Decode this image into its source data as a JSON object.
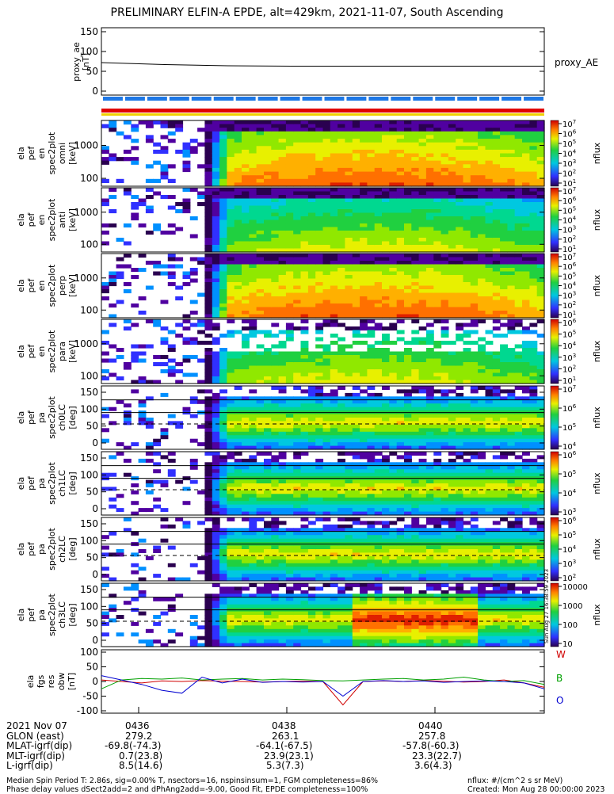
{
  "title": "PRELIMINARY ELFIN-A EPDE, alt=429km, 2021-11-07, South Ascending",
  "colors": {
    "colorbar_top": "#c00000",
    "colorbar_bottom": "#2a0050",
    "trace_w": "#d00000",
    "trace_b": "#00a000",
    "trace_o": "#0000d0",
    "bar_blue": "#1e78e6",
    "bar_red": "#e00000",
    "bar_yellow": "#f0d000"
  },
  "chart_data": [
    {
      "type": "line",
      "panel": "proxy_ae",
      "ylabel": [
        "proxy_ae",
        "[nT]"
      ],
      "legend": "proxy_AE",
      "ylim": [
        0,
        150
      ],
      "yticks": [
        "150",
        "100",
        "50",
        "0"
      ],
      "x": [
        "04:35:00",
        "04:36:00",
        "04:37:00",
        "04:38:00",
        "04:39:00",
        "04:40:00",
        "04:41:00",
        "04:41:45"
      ],
      "values": [
        72,
        67,
        64,
        63,
        63,
        63,
        63,
        63
      ]
    },
    {
      "type": "heatmap",
      "panel": "en omni",
      "ylabel": [
        "ela",
        "pef",
        "en",
        "spec2plot",
        "omni",
        "[keV]"
      ],
      "yticks": [
        "1000",
        "100"
      ],
      "colorbar": {
        "label": "nflux",
        "ticks": [
          "10^7",
          "10^6",
          "10^5",
          "10^4",
          "10^3",
          "10^2",
          "10^1"
        ]
      }
    },
    {
      "type": "heatmap",
      "panel": "en anti",
      "ylabel": [
        "ela",
        "pef",
        "en",
        "spec2plot",
        "anti",
        "[keV]"
      ],
      "yticks": [
        "1000",
        "100"
      ],
      "colorbar": {
        "label": "nflux",
        "ticks": [
          "10^7",
          "10^6",
          "10^5",
          "10^4",
          "10^3",
          "10^2",
          "10^1"
        ]
      }
    },
    {
      "type": "heatmap",
      "panel": "en perp",
      "ylabel": [
        "ela",
        "pef",
        "en",
        "spec2plot",
        "perp",
        "[keV]"
      ],
      "yticks": [
        "1000",
        "100"
      ],
      "colorbar": {
        "label": "nflux",
        "ticks": [
          "10^7",
          "10^6",
          "10^5",
          "10^4",
          "10^3",
          "10^2",
          "10^1"
        ]
      }
    },
    {
      "type": "heatmap",
      "panel": "en para",
      "ylabel": [
        "ela",
        "pef",
        "en",
        "spec2plot",
        "para",
        "[keV]"
      ],
      "yticks": [
        "1000",
        "100"
      ],
      "colorbar": {
        "label": "nflux",
        "ticks": [
          "10^6",
          "10^5",
          "10^4",
          "10^3",
          "10^2",
          "10^1"
        ]
      }
    },
    {
      "type": "heatmap",
      "panel": "pa ch0LC",
      "ylabel": [
        "ela",
        "pef",
        "pa",
        "spec2plot",
        "ch0LC",
        "[deg]"
      ],
      "yticks": [
        "150",
        "100",
        "50",
        "0"
      ],
      "colorbar": {
        "label": "nflux",
        "ticks": [
          "10^7",
          "10^6",
          "10^5",
          "10^4"
        ]
      }
    },
    {
      "type": "heatmap",
      "panel": "pa ch1LC",
      "ylabel": [
        "ela",
        "pef",
        "pa",
        "spec2plot",
        "ch1LC",
        "[deg]"
      ],
      "yticks": [
        "150",
        "100",
        "50",
        "0"
      ],
      "colorbar": {
        "label": "nflux",
        "ticks": [
          "10^6",
          "10^5",
          "10^4",
          "10^3"
        ]
      }
    },
    {
      "type": "heatmap",
      "panel": "pa ch2LC",
      "ylabel": [
        "ela",
        "pef",
        "pa",
        "spec2plot",
        "ch2LC",
        "[deg]"
      ],
      "yticks": [
        "150",
        "100",
        "50",
        "0"
      ],
      "colorbar": {
        "label": "nflux",
        "ticks": [
          "10^6",
          "10^5",
          "10^4",
          "10^3",
          "10^2"
        ]
      }
    },
    {
      "type": "heatmap",
      "panel": "pa ch3LC",
      "ylabel": [
        "ela",
        "pef",
        "pa",
        "spec2plot",
        "ch3LC",
        "[deg]"
      ],
      "yticks": [
        "150",
        "100",
        "50",
        "0"
      ],
      "colorbar": {
        "label": "nflux",
        "ticks": [
          "10000",
          "1000",
          "100",
          "10"
        ]
      }
    },
    {
      "type": "line",
      "panel": "fgs res",
      "ylabel": [
        "ela",
        "fgs",
        "res",
        "obw",
        "[nT]"
      ],
      "ylim": [
        -100,
        100
      ],
      "yticks": [
        "100",
        "50",
        "0",
        "-50",
        "-100"
      ],
      "legend": [
        "W",
        "B",
        "O"
      ],
      "series": [
        {
          "name": "W",
          "values": [
            5,
            0,
            -5,
            2,
            0,
            3,
            1,
            0,
            -2,
            0,
            1,
            0,
            -80,
            0,
            2,
            0,
            3,
            1,
            -2,
            0,
            5,
            -5,
            -20
          ]
        },
        {
          "name": "B",
          "values": [
            -25,
            5,
            10,
            8,
            12,
            5,
            8,
            10,
            5,
            8,
            6,
            3,
            2,
            5,
            8,
            10,
            5,
            8,
            15,
            5,
            0,
            3,
            -10
          ]
        },
        {
          "name": "O",
          "values": [
            20,
            5,
            -10,
            -30,
            -40,
            15,
            -5,
            8,
            -3,
            0,
            -2,
            0,
            -50,
            0,
            3,
            0,
            2,
            -3,
            0,
            2,
            0,
            -5,
            -25
          ]
        }
      ]
    }
  ],
  "ephemeris": {
    "date": "2021 Nov 07",
    "times": [
      "0436",
      "0438",
      "0440"
    ],
    "rows": [
      {
        "label": "GLON (east)",
        "values": [
          "279.2",
          "263.1",
          "257.8"
        ]
      },
      {
        "label": "MLAT-igrf(dip)",
        "values": [
          "-69.8(-74.3)",
          "-64.1(-67.5)",
          "-57.8(-60.3)"
        ]
      },
      {
        "label": "MLT-igrf(dip)",
        "values": [
          "0.7(23.8)",
          "23.9(23.1)",
          "23.3(22.7)"
        ]
      },
      {
        "label": "L-igrf(dip)",
        "values": [
          "8.5(14.6)",
          "5.3(7.3)",
          "3.6(4.3)"
        ]
      }
    ]
  },
  "footer": {
    "line1": "Median Spin Period T: 2.86s, sig=0.00% T, nsectors=16, nspinsinsum=1, FGM completeness=86%",
    "line2": "Phase delay values dSect2add=2 and dPhAng2add=-9.00, Good Fit, EPDE completeness=100%",
    "units": "nflux: #/(cm^2 s sr MeV)",
    "created": "Created: Mon Aug 28 00:00:00 2023"
  },
  "stamp": "Sun Aug 27 16:38:59 2023"
}
